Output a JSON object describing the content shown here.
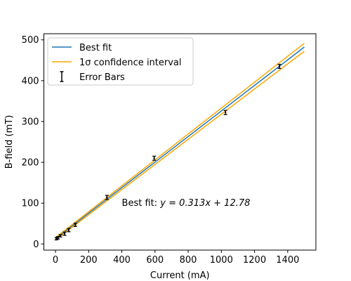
{
  "chart_data": {
    "type": "line",
    "xlabel": "Current (mA)",
    "ylabel": "B-field (mT)",
    "xlim": [
      -70,
      1570
    ],
    "ylim": [
      -15,
      515
    ],
    "x_ticks": [
      0,
      200,
      400,
      600,
      800,
      1000,
      1200,
      1400
    ],
    "y_ticks": [
      0,
      100,
      200,
      300,
      400,
      500
    ],
    "grid": false,
    "legend_position": "top-left",
    "legend": {
      "best_fit": "Best fit",
      "confidence": "1σ confidence interval",
      "error_bars": "Error Bars"
    },
    "annotation": {
      "prefix": "Best fit: ",
      "equation": "y = 0.313x + 12.78"
    },
    "series": [
      {
        "name": "Best fit",
        "kind": "line",
        "color": "#1f77b4",
        "x": [
          0,
          1500
        ],
        "y": [
          12.78,
          482.28
        ]
      },
      {
        "name": "1σ confidence interval",
        "kind": "line",
        "color": "#ffa500",
        "x": [
          0,
          1500
        ],
        "y": [
          15.5,
          491.5
        ]
      },
      {
        "name": "1σ confidence interval (lower)",
        "kind": "line",
        "color": "#ffa500",
        "x": [
          0,
          1500
        ],
        "y": [
          10.0,
          472.0
        ]
      },
      {
        "name": "Error Bars",
        "kind": "errorbar",
        "color": "#000000",
        "x": [
          5,
          15,
          30,
          55,
          80,
          120,
          310,
          595,
          1025,
          1350
        ],
        "y": [
          13,
          15,
          20,
          25,
          34,
          47,
          114,
          210,
          322,
          435
        ],
        "yerr": [
          3,
          3,
          3,
          4,
          4,
          4,
          5,
          5,
          5,
          5
        ]
      }
    ]
  }
}
